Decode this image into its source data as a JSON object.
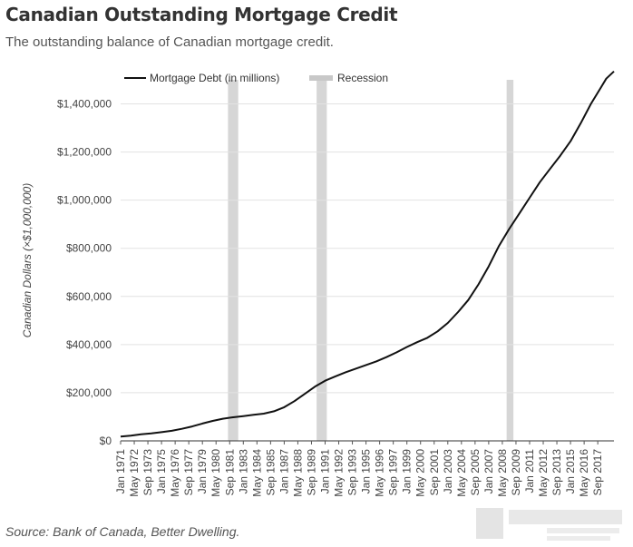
{
  "header": {
    "title": "Canadian Outstanding Mortgage Credit",
    "subtitle": "The outstanding balance of Canadian mortgage credit."
  },
  "footer": {
    "source": "Source: Bank of Canada, Better Dwelling."
  },
  "watermark": {
    "icon": "company-logo-icon"
  },
  "chart_data": {
    "type": "line",
    "title": "Canadian Outstanding Mortgage Credit",
    "subtitle": "The outstanding balance of Canadian mortgage credit.",
    "ylabel": "Canadian Dollars (×$1,000,000)",
    "xlabel": "",
    "ylim": [
      0,
      1500000
    ],
    "yticks": [
      0,
      200000,
      400000,
      600000,
      800000,
      1000000,
      1200000,
      1400000
    ],
    "ytick_labels": [
      "$0",
      "$200,000",
      "$400,000",
      "$600,000",
      "$800,000",
      "$1,000,000",
      "$1,200,000",
      "$1,400,000"
    ],
    "xlim": [
      "1971-01",
      "2019-04"
    ],
    "xtick_labels": [
      "Jan 1971",
      "May 1972",
      "Sep 1973",
      "Jan 1975",
      "May 1976",
      "Sep 1977",
      "Jan 1979",
      "May 1980",
      "Sep 1981",
      "Jan 1983",
      "May 1984",
      "Sep 1985",
      "Jan 1987",
      "May 1988",
      "Sep 1989",
      "Jan 1991",
      "May 1992",
      "Sep 1993",
      "Jan 1995",
      "May 1996",
      "Sep 1997",
      "Jan 1999",
      "May 2000",
      "Sep 2001",
      "Jan 2003",
      "May 2004",
      "Sep 2005",
      "Jan 2007",
      "May 2008",
      "Sep 2009",
      "Jan 2011",
      "May 2012",
      "Sep 2013",
      "Jan 2015",
      "May 2016",
      "Sep 2017"
    ],
    "grid": true,
    "legend_position": "top",
    "legend": [
      {
        "name": "Mortgage Debt (in millions)",
        "color": "#111111"
      },
      {
        "name": "Recession",
        "color": "#c8c8c8"
      }
    ],
    "recessions": [
      {
        "start": "1981-07",
        "end": "1982-07"
      },
      {
        "start": "1990-03",
        "end": "1991-03"
      },
      {
        "start": "2008-10",
        "end": "2009-06"
      }
    ],
    "series": [
      {
        "name": "Mortgage Debt (in millions)",
        "color": "#111111",
        "points": [
          [
            "1971-01",
            18000
          ],
          [
            "1972-01",
            22000
          ],
          [
            "1973-01",
            27000
          ],
          [
            "1974-01",
            31000
          ],
          [
            "1975-01",
            36000
          ],
          [
            "1976-01",
            42000
          ],
          [
            "1977-01",
            50000
          ],
          [
            "1978-01",
            60000
          ],
          [
            "1979-01",
            72000
          ],
          [
            "1980-01",
            83000
          ],
          [
            "1981-01",
            92000
          ],
          [
            "1982-01",
            98000
          ],
          [
            "1983-01",
            103000
          ],
          [
            "1984-01",
            108000
          ],
          [
            "1985-01",
            113000
          ],
          [
            "1986-01",
            123000
          ],
          [
            "1987-01",
            140000
          ],
          [
            "1988-01",
            165000
          ],
          [
            "1989-01",
            195000
          ],
          [
            "1990-01",
            225000
          ],
          [
            "1991-01",
            250000
          ],
          [
            "1992-01",
            268000
          ],
          [
            "1993-01",
            285000
          ],
          [
            "1994-01",
            300000
          ],
          [
            "1995-01",
            315000
          ],
          [
            "1996-01",
            330000
          ],
          [
            "1997-01",
            348000
          ],
          [
            "1998-01",
            368000
          ],
          [
            "1999-01",
            390000
          ],
          [
            "2000-01",
            410000
          ],
          [
            "2001-01",
            428000
          ],
          [
            "2002-01",
            455000
          ],
          [
            "2003-01",
            490000
          ],
          [
            "2004-01",
            535000
          ],
          [
            "2005-01",
            585000
          ],
          [
            "2006-01",
            650000
          ],
          [
            "2007-01",
            725000
          ],
          [
            "2008-01",
            810000
          ],
          [
            "2009-01",
            880000
          ],
          [
            "2010-01",
            945000
          ],
          [
            "2011-01",
            1010000
          ],
          [
            "2012-01",
            1075000
          ],
          [
            "2013-01",
            1130000
          ],
          [
            "2014-01",
            1185000
          ],
          [
            "2015-01",
            1245000
          ],
          [
            "2016-01",
            1320000
          ],
          [
            "2017-01",
            1400000
          ],
          [
            "2018-01",
            1470000
          ],
          [
            "2018-07",
            1505000
          ],
          [
            "2019-04",
            1535000
          ]
        ]
      }
    ]
  }
}
